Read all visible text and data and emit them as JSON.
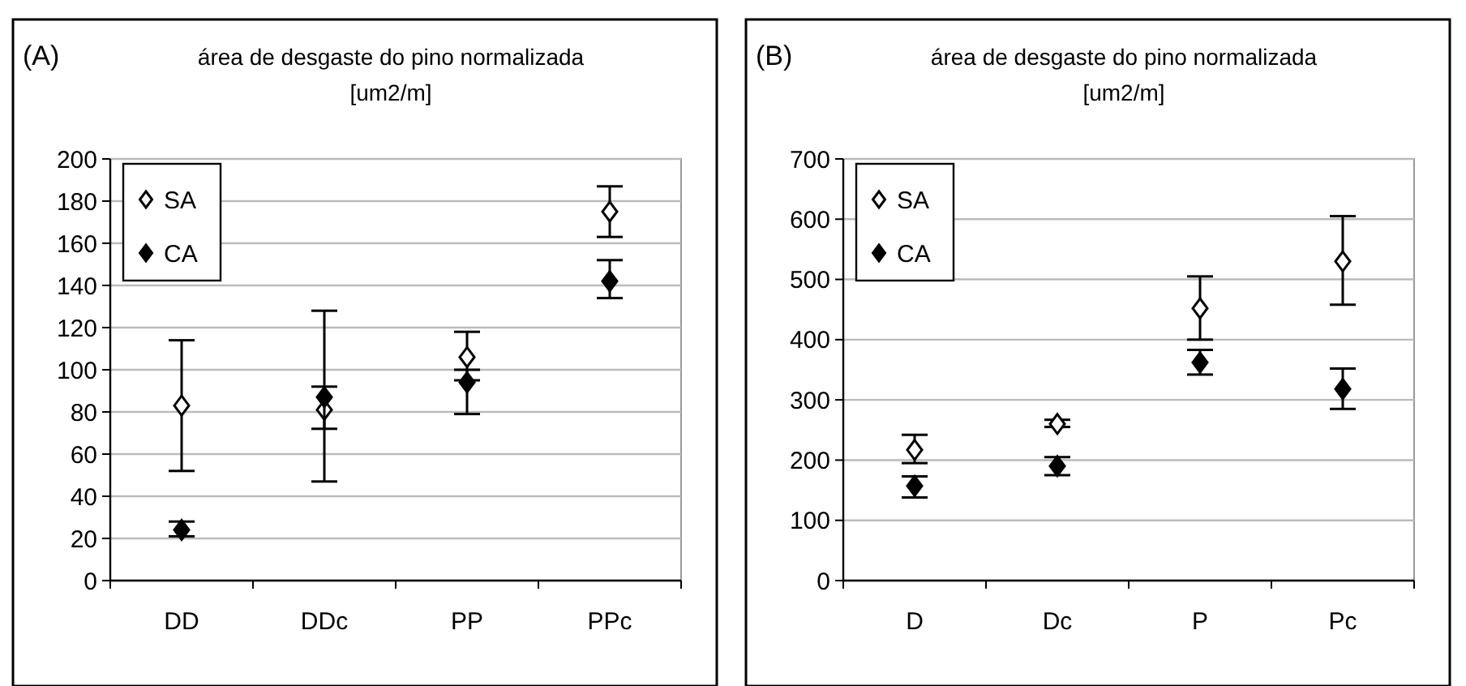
{
  "chart_data": [
    {
      "type": "scatter",
      "title": "área de desgaste do pino normalizada [um2/m]",
      "annotations": [
        "(A)"
      ],
      "categories": [
        "DD",
        "DDc",
        "PP",
        "PPc"
      ],
      "ylim": [
        0,
        200
      ],
      "yticks": [
        0,
        20,
        40,
        60,
        80,
        100,
        120,
        140,
        160,
        180,
        200
      ],
      "grid": "y",
      "legend": "top left",
      "marker": "diamond",
      "series": [
        {
          "name": "SA",
          "color": "#ffffff",
          "values": [
            83,
            81,
            106,
            175
          ],
          "errors": [
            [
              52,
              114
            ],
            [
              47,
              128
            ],
            [
              95,
              118
            ],
            [
              163,
              187
            ]
          ]
        },
        {
          "name": "CA",
          "color": "#000000",
          "values": [
            24,
            87,
            94,
            142
          ],
          "errors": [
            [
              21,
              28
            ],
            [
              72,
              92
            ],
            [
              79,
              100
            ],
            [
              134,
              152
            ]
          ]
        }
      ]
    },
    {
      "type": "scatter",
      "title": "área de desgaste do pino normalizada [um2/m]",
      "annotations": [
        "(B)"
      ],
      "categories": [
        "D",
        "Dc",
        "P",
        "Pc"
      ],
      "ylim": [
        0,
        700
      ],
      "yticks": [
        0,
        100,
        200,
        300,
        400,
        500,
        600,
        700
      ],
      "grid": "y",
      "legend": "top left",
      "marker": "diamond",
      "series": [
        {
          "name": "SA",
          "color": "#ffffff",
          "values": [
            217,
            260,
            452,
            530
          ],
          "errors": [
            [
              195,
              242
            ],
            [
              255,
              267
            ],
            [
              400,
              505
            ],
            [
              458,
              605
            ]
          ]
        },
        {
          "name": "CA",
          "color": "#000000",
          "values": [
            157,
            190,
            362,
            318
          ],
          "errors": [
            [
              138,
              173
            ],
            [
              175,
              205
            ],
            [
              342,
              383
            ],
            [
              285,
              352
            ]
          ]
        }
      ]
    }
  ]
}
